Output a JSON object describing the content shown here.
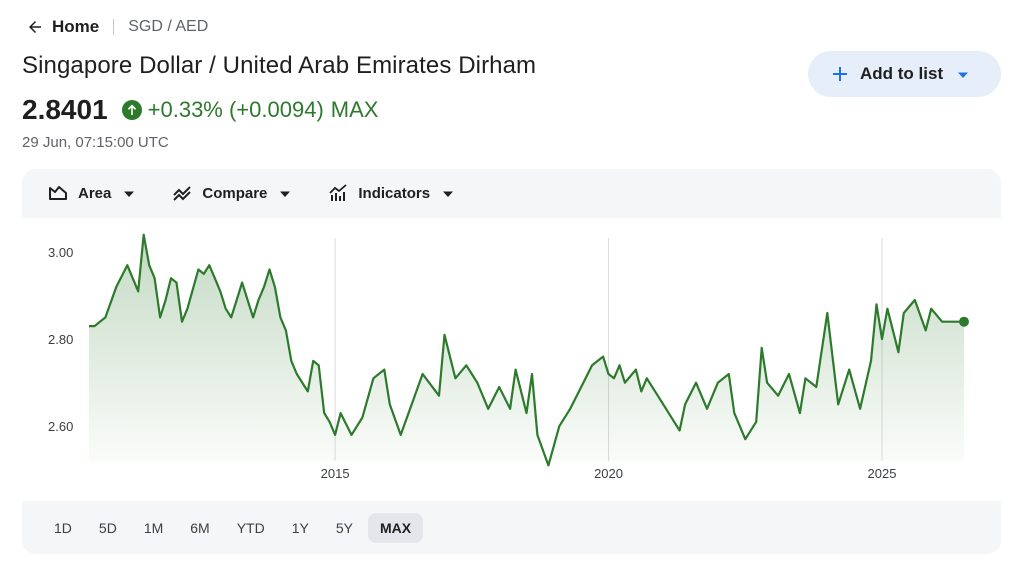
{
  "breadcrumb": {
    "home": "Home",
    "symbol": "SGD / AED"
  },
  "title": "Singapore Dollar / United Arab Emirates Dirham",
  "add_button": {
    "label": "Add to list"
  },
  "quote": {
    "price": "2.8401",
    "change": "+0.33% (+0.0094)",
    "period": "MAX",
    "timestamp": "29 Jun, 07:15:00 UTC"
  },
  "toolbar": {
    "area": "Area",
    "compare": "Compare",
    "indicators": "Indicators"
  },
  "ranges": [
    "1D",
    "5D",
    "1M",
    "6M",
    "YTD",
    "1Y",
    "5Y",
    "MAX"
  ],
  "active_range": "MAX",
  "colors": {
    "line": "#2d7a2d",
    "accent": "#1a73e8",
    "up": "#2d7a2d"
  },
  "icons": {
    "back": "arrow-left-icon",
    "add": "plus-icon",
    "area": "area-chart-icon",
    "compare": "compare-icon",
    "indicators": "indicators-icon",
    "change": "arrow-up-circle-icon"
  },
  "chart_data": {
    "type": "area",
    "ylim": [
      2.52,
      3.06
    ],
    "xlim": [
      2010.5,
      2026.5
    ],
    "y_ticks": [
      3.0,
      2.8,
      2.6
    ],
    "y_tick_labels": [
      "3.00",
      "2.80",
      "2.60"
    ],
    "x_ticks": [
      2015,
      2020,
      2025
    ],
    "x_tick_labels": [
      "2015",
      "2020",
      "2025"
    ],
    "grid": "vertical lines at x ticks",
    "series": [
      {
        "x": [
          2010.5,
          2010.6,
          2010.8,
          2011.0,
          2011.2,
          2011.4,
          2011.5,
          2011.6,
          2011.7,
          2011.8,
          2011.9,
          2012.0,
          2012.1,
          2012.2,
          2012.3,
          2012.5,
          2012.6,
          2012.7,
          2012.8,
          2012.9,
          2013.0,
          2013.1,
          2013.2,
          2013.3,
          2013.4,
          2013.5,
          2013.6,
          2013.7,
          2013.8,
          2013.9,
          2014.0,
          2014.1,
          2014.2,
          2014.3,
          2014.5,
          2014.6,
          2014.7,
          2014.8,
          2014.9,
          2015.0,
          2015.1,
          2015.3,
          2015.5,
          2015.7,
          2015.9,
          2016.0,
          2016.2,
          2016.4,
          2016.6,
          2016.9,
          2017.0,
          2017.2,
          2017.4,
          2017.6,
          2017.8,
          2018.0,
          2018.2,
          2018.3,
          2018.5,
          2018.6,
          2018.7,
          2018.9,
          2019.1,
          2019.3,
          2019.5,
          2019.7,
          2019.9,
          2020.0,
          2020.1,
          2020.2,
          2020.3,
          2020.5,
          2020.6,
          2020.7,
          2020.9,
          2021.1,
          2021.3,
          2021.4,
          2021.6,
          2021.8,
          2022.0,
          2022.2,
          2022.3,
          2022.5,
          2022.7,
          2022.8,
          2022.9,
          2023.1,
          2023.3,
          2023.5,
          2023.6,
          2023.8,
          2024.0,
          2024.2,
          2024.4,
          2024.6,
          2024.8,
          2024.9,
          2025.0,
          2025.1,
          2025.3,
          2025.4,
          2025.6,
          2025.8,
          2025.9,
          2026.1,
          2026.3,
          2026.5
        ],
        "y": [
          2.83,
          2.83,
          2.85,
          2.92,
          2.97,
          2.91,
          3.04,
          2.97,
          2.94,
          2.85,
          2.89,
          2.94,
          2.93,
          2.84,
          2.87,
          2.96,
          2.95,
          2.97,
          2.94,
          2.91,
          2.87,
          2.85,
          2.89,
          2.93,
          2.89,
          2.85,
          2.89,
          2.92,
          2.96,
          2.92,
          2.85,
          2.82,
          2.75,
          2.72,
          2.68,
          2.75,
          2.74,
          2.63,
          2.61,
          2.58,
          2.63,
          2.58,
          2.62,
          2.71,
          2.73,
          2.65,
          2.58,
          2.65,
          2.72,
          2.67,
          2.81,
          2.71,
          2.74,
          2.7,
          2.64,
          2.69,
          2.64,
          2.73,
          2.63,
          2.72,
          2.58,
          2.51,
          2.6,
          2.64,
          2.69,
          2.74,
          2.76,
          2.72,
          2.71,
          2.74,
          2.7,
          2.73,
          2.68,
          2.71,
          2.67,
          2.63,
          2.59,
          2.65,
          2.7,
          2.64,
          2.7,
          2.72,
          2.63,
          2.57,
          2.61,
          2.78,
          2.7,
          2.67,
          2.72,
          2.63,
          2.71,
          2.69,
          2.86,
          2.65,
          2.73,
          2.64,
          2.75,
          2.88,
          2.8,
          2.87,
          2.77,
          2.86,
          2.89,
          2.82,
          2.87,
          2.84,
          2.8401,
          2.8401
        ]
      }
    ]
  }
}
